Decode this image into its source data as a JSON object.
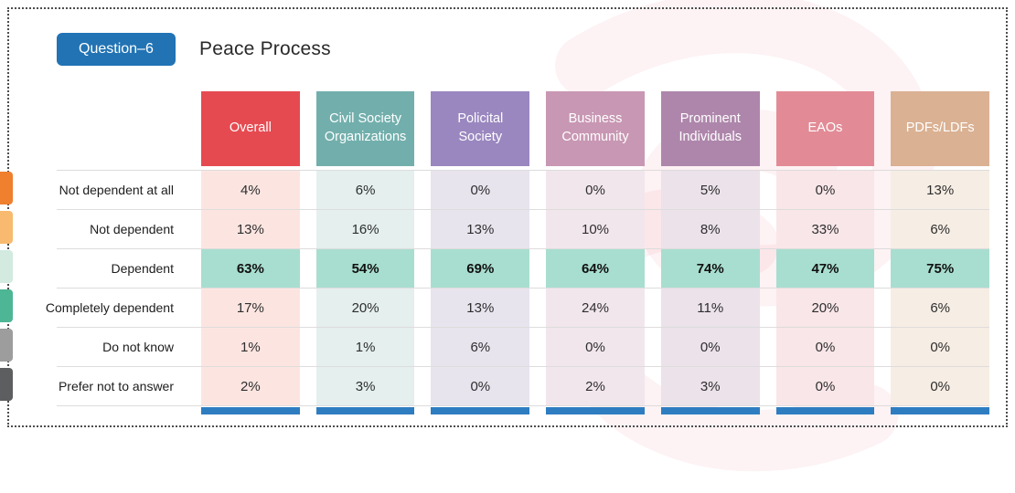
{
  "badge": {
    "label": "Question–6"
  },
  "title": "Peace Process",
  "chart_data": {
    "type": "table",
    "title": "Peace Process",
    "unit": "%",
    "columns": [
      "Overall",
      "Civil Society Organizations",
      "Policital Society",
      "Business Community",
      "Prominent Individuals",
      "EAOs",
      "PDFs/LDFs"
    ],
    "rows": [
      {
        "label": "Not dependent at all",
        "values": [
          4,
          6,
          0,
          0,
          5,
          0,
          13
        ],
        "highlight": false
      },
      {
        "label": "Not dependent",
        "values": [
          13,
          16,
          13,
          10,
          8,
          33,
          6
        ],
        "highlight": false
      },
      {
        "label": "Dependent",
        "values": [
          63,
          54,
          69,
          64,
          74,
          47,
          75
        ],
        "highlight": true
      },
      {
        "label": "Completely dependent",
        "values": [
          17,
          20,
          13,
          24,
          11,
          20,
          6
        ],
        "highlight": false
      },
      {
        "label": "Do not know",
        "values": [
          1,
          1,
          6,
          0,
          0,
          0,
          0
        ],
        "highlight": false
      },
      {
        "label": "Prefer not to answer",
        "values": [
          2,
          3,
          0,
          2,
          3,
          0,
          0
        ],
        "highlight": false
      }
    ]
  },
  "colors": {
    "badge_bg": "#2173b4",
    "header_colors": [
      "#e64a51",
      "#72afac",
      "#9a87bf",
      "#c897b3",
      "#ae86ab",
      "#e28b96",
      "#dab193"
    ],
    "tint_colors": [
      "#fce5e1",
      "#e4efee",
      "#e8e4ee",
      "#f2e6ed",
      "#ebe2ea",
      "#f9e6e8",
      "#f6ede4"
    ],
    "highlight": "#a8decf",
    "footer_bar": "#2f7dc1",
    "edge_tabs": [
      "#f07f2e",
      "#f7ba6f",
      "#d2eadf",
      "#4db694",
      "#9d9d9d",
      "#5d5e60"
    ],
    "watermark": "#f0a4b4"
  }
}
